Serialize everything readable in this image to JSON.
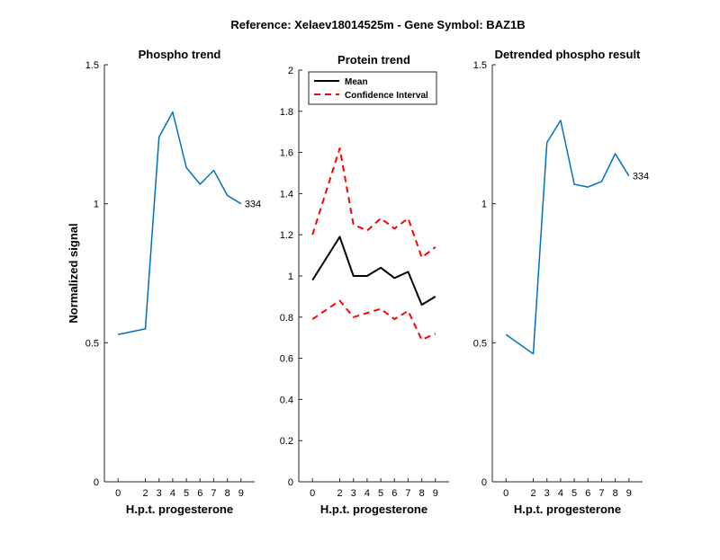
{
  "figure": {
    "suptitle": "Reference:  Xelaev18014525m - Gene Symbol:  BAZ1B",
    "colors": {
      "phospho": "#0072BD",
      "mean": "#000000",
      "ci": "#FF0000"
    }
  },
  "chart_data": [
    {
      "type": "line",
      "title": "Phospho trend",
      "xlabel": "H.p.t. progesterone",
      "ylabel": "Normalized signal",
      "x": [
        0,
        2,
        3,
        4,
        5,
        6,
        7,
        8,
        9
      ],
      "xticks": [
        "0",
        "2",
        "3",
        "4",
        "5",
        "6",
        "7",
        "8",
        "9"
      ],
      "ylim": [
        0,
        1.5
      ],
      "yticks": [
        "0",
        "0.5",
        "1",
        "1.5"
      ],
      "yticks_values": [
        0,
        0.5,
        1,
        1.5
      ],
      "series": [
        {
          "values": [
            0.53,
            0.55,
            1.24,
            1.33,
            1.13,
            1.07,
            1.12,
            1.03,
            1.0
          ]
        }
      ],
      "annotation": "334"
    },
    {
      "type": "line",
      "title": "Protein trend",
      "xlabel": "H.p.t. progesterone",
      "ylabel": "",
      "x": [
        0,
        2,
        3,
        4,
        5,
        6,
        7,
        8,
        9
      ],
      "xticks": [
        "0",
        "2",
        "3",
        "4",
        "5",
        "6",
        "7",
        "8",
        "9"
      ],
      "ylim": [
        0,
        2
      ],
      "yticks": [
        "0",
        "0.2",
        "0.4",
        "0.6",
        "0.8",
        "1",
        "1.2",
        "1.4",
        "1.6",
        "1.8",
        "2"
      ],
      "yticks_values": [
        0,
        0.2,
        0.4,
        0.6,
        0.8,
        1,
        1.2,
        1.4,
        1.6,
        1.8,
        2
      ],
      "legend": {
        "position": "top-left"
      },
      "series": [
        {
          "name": "Mean",
          "style": "solid",
          "values": [
            0.98,
            1.19,
            1.0,
            1.0,
            1.04,
            0.99,
            1.02,
            0.86,
            0.9
          ]
        },
        {
          "name": "Confidence Interval",
          "style": "dashed",
          "values": [
            1.2,
            1.62,
            1.25,
            1.22,
            1.28,
            1.23,
            1.28,
            1.09,
            1.14
          ]
        },
        {
          "name": "",
          "style": "dashed",
          "values": [
            0.79,
            0.88,
            0.8,
            0.82,
            0.84,
            0.79,
            0.83,
            0.69,
            0.72
          ]
        }
      ]
    },
    {
      "type": "line",
      "title": "Detrended phospho result",
      "xlabel": "H.p.t. progesterone",
      "ylabel": "",
      "x": [
        0,
        2,
        3,
        4,
        5,
        6,
        7,
        8,
        9
      ],
      "xticks": [
        "0",
        "2",
        "3",
        "4",
        "5",
        "6",
        "7",
        "8",
        "9"
      ],
      "ylim": [
        0,
        1.5
      ],
      "yticks": [
        "0",
        "0.5",
        "1",
        "1.5"
      ],
      "yticks_values": [
        0,
        0.5,
        1,
        1.5
      ],
      "series": [
        {
          "values": [
            0.53,
            0.46,
            1.22,
            1.3,
            1.07,
            1.06,
            1.08,
            1.18,
            1.1
          ]
        }
      ],
      "annotation": "334"
    }
  ]
}
